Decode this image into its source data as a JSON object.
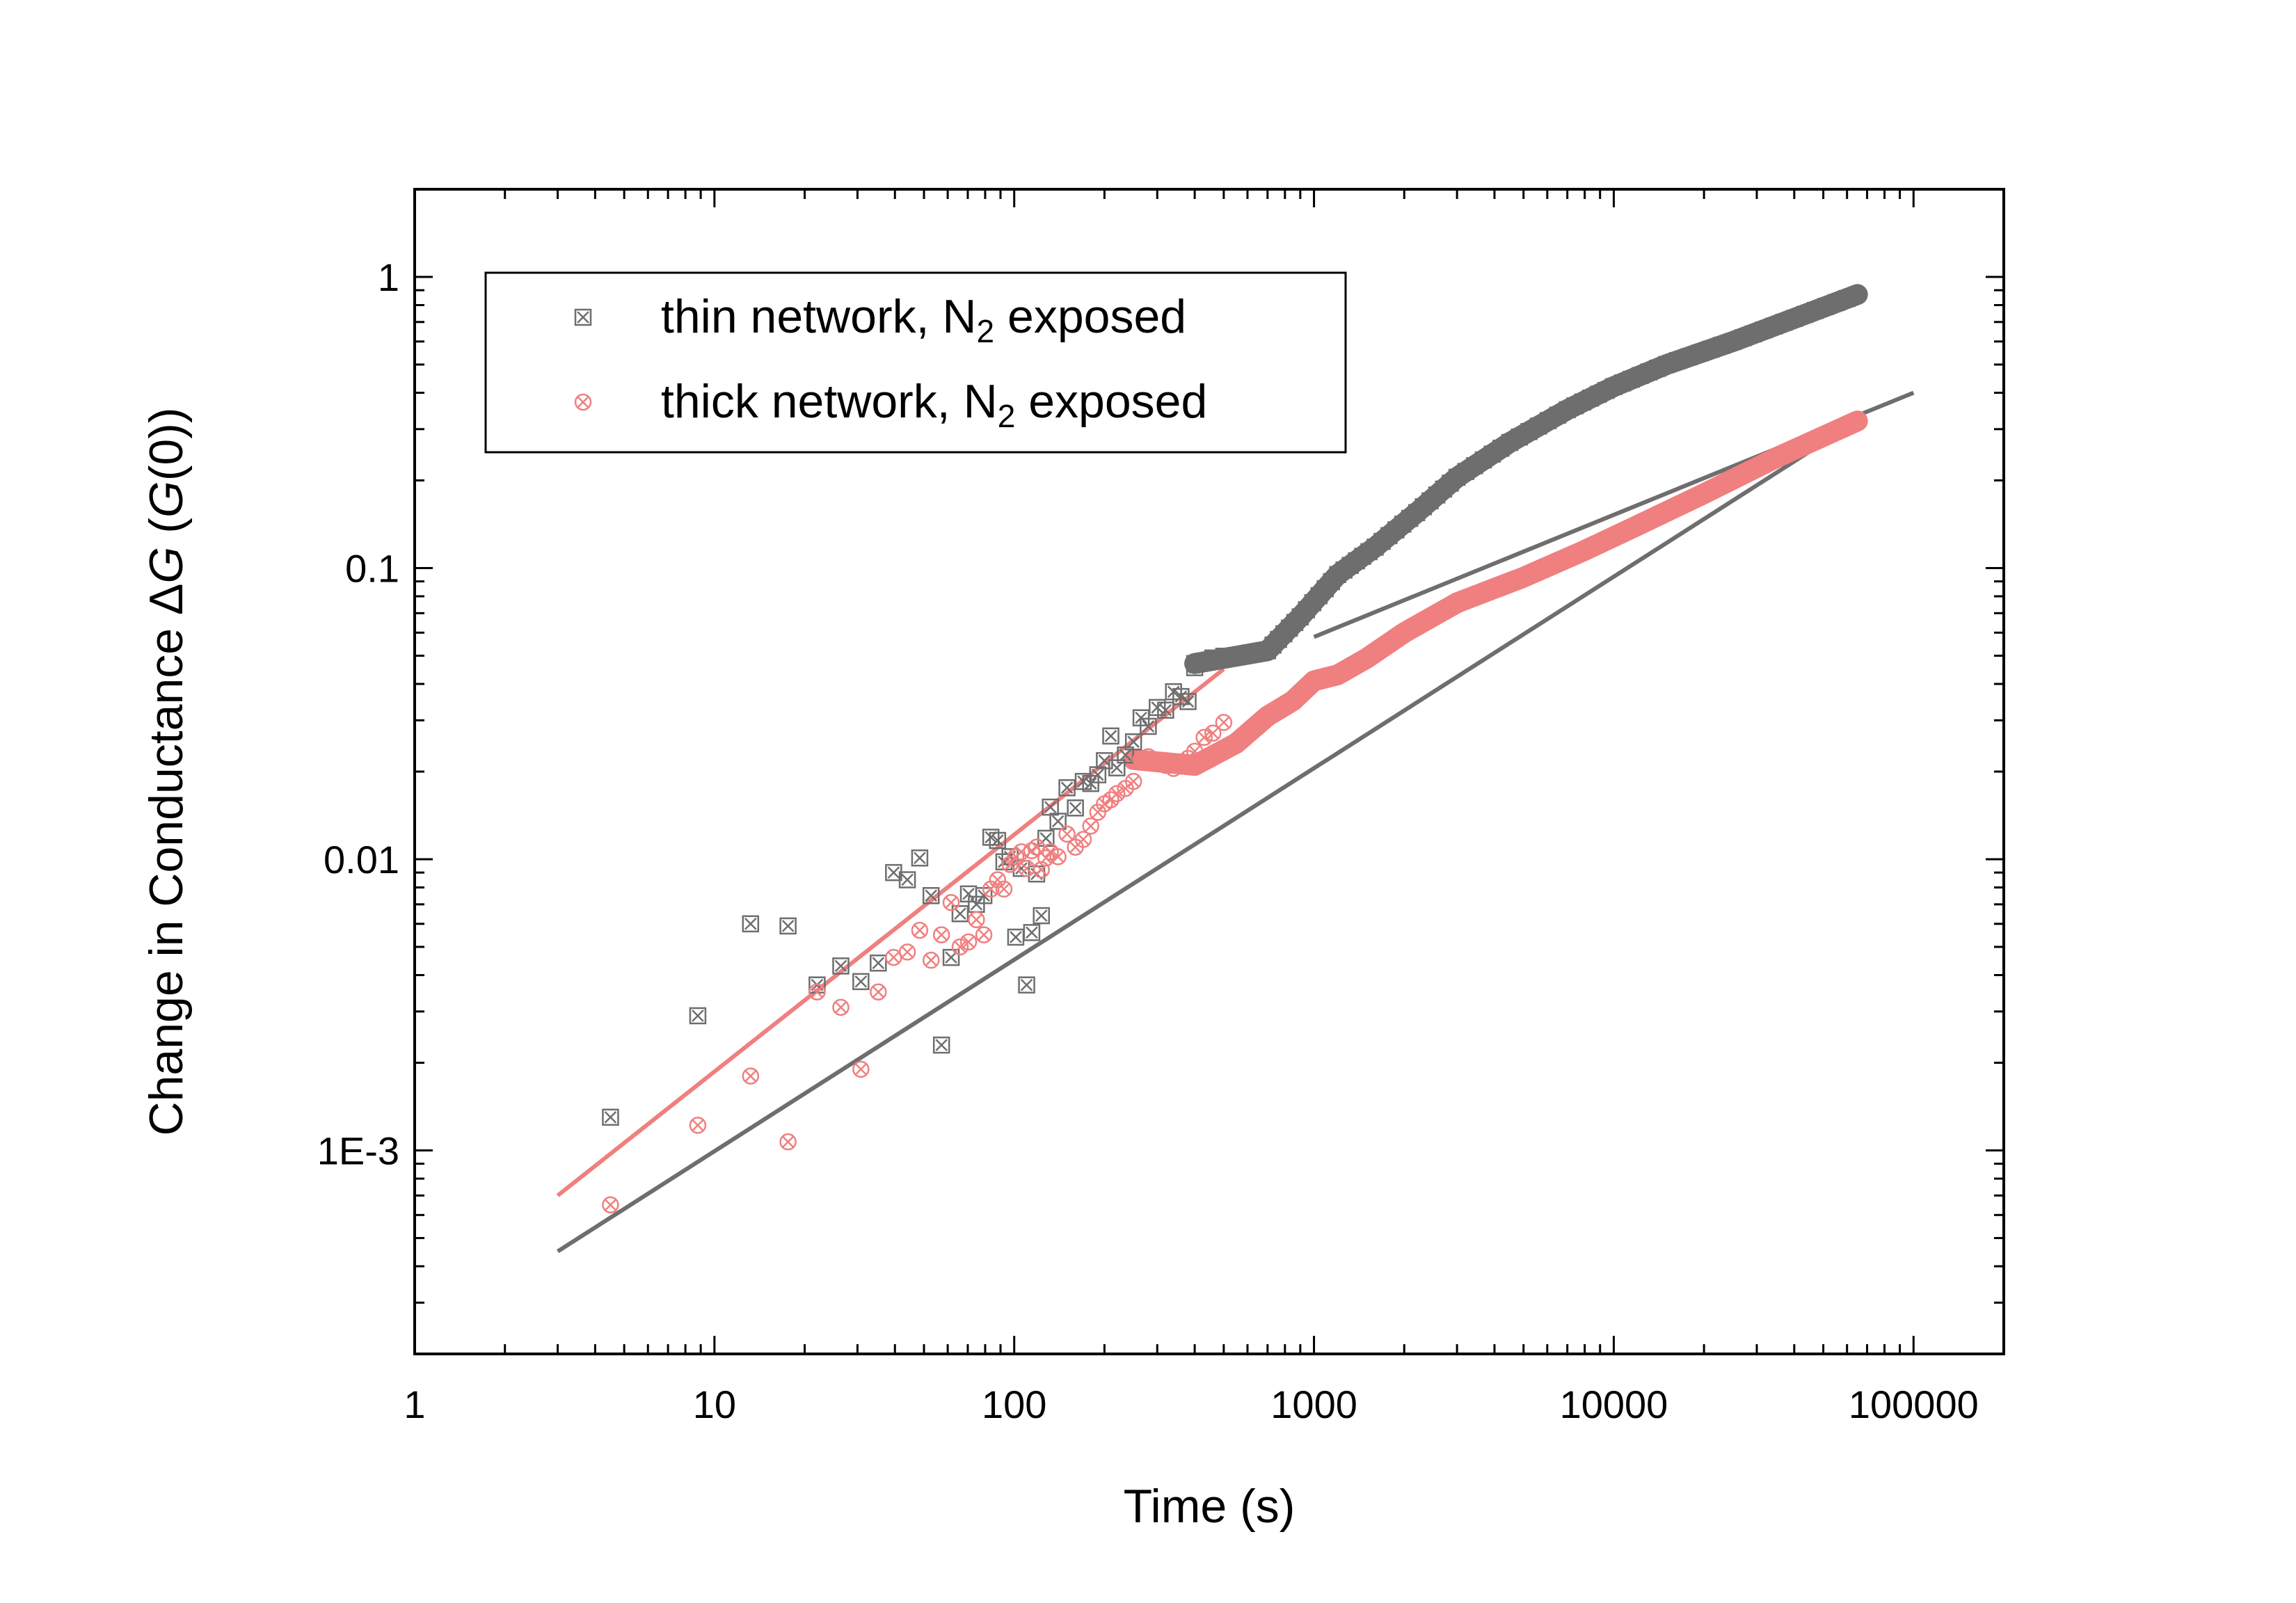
{
  "chart_data": {
    "type": "scatter",
    "xscale": "log",
    "yscale": "log",
    "xlim": [
      1,
      200000
    ],
    "ylim": [
      0.0002,
      2
    ],
    "xlabel": "Time (s)",
    "ylabel_parts": {
      "prefix": "Change in Conductance ",
      "delta": "Δ",
      "var": "G",
      "paren_open": " (",
      "var2": "G",
      "paren_close": "(0))"
    },
    "xticks": [
      1,
      10,
      100,
      1000,
      10000,
      100000
    ],
    "xtick_labels": [
      "1",
      "10",
      "100",
      "1000",
      "10000",
      "100000"
    ],
    "yticks": [
      0.001,
      0.01,
      0.1,
      1
    ],
    "ytick_labels": [
      "1E-3",
      "0.01",
      "0.1",
      "1"
    ],
    "legend": {
      "position": "top-left",
      "entries": [
        {
          "text": "thin network, N",
          "sub": "2",
          "text_after": " exposed"
        },
        {
          "text": "thick network, N",
          "sub": "2",
          "text_after": " exposed"
        }
      ]
    },
    "series": [
      {
        "name": "thin network, N2 exposed",
        "color": "#6e6e6e",
        "marker": "square-x",
        "points": [
          [
            4.5,
            0.0013
          ],
          [
            8.8,
            0.0029
          ],
          [
            13.2,
            0.006
          ],
          [
            17.6,
            0.0059
          ],
          [
            22,
            0.0037
          ],
          [
            26.4,
            0.0043
          ],
          [
            30.8,
            0.0038
          ],
          [
            35.2,
            0.0044
          ],
          [
            39.6,
            0.009
          ],
          [
            44,
            0.0085
          ],
          [
            48.4,
            0.0101
          ],
          [
            52.8,
            0.0075
          ],
          [
            57.2,
            0.0023
          ],
          [
            61.6,
            0.0046
          ],
          [
            66,
            0.0065
          ],
          [
            70.4,
            0.0076
          ],
          [
            74.8,
            0.007
          ],
          [
            79.2,
            0.0075
          ],
          [
            83.6,
            0.0119
          ],
          [
            88,
            0.0116
          ],
          [
            92.4,
            0.0098
          ],
          [
            96.8,
            0.0102
          ],
          [
            101.2,
            0.0054
          ],
          [
            105.6,
            0.0093
          ],
          [
            110,
            0.0037
          ],
          [
            114.4,
            0.0056
          ],
          [
            118.8,
            0.0089
          ],
          [
            123.2,
            0.0064
          ],
          [
            127.6,
            0.0118
          ],
          [
            132,
            0.0151
          ],
          [
            140,
            0.0135
          ],
          [
            150,
            0.0176
          ],
          [
            160,
            0.015
          ],
          [
            170,
            0.0185
          ],
          [
            180,
            0.0182
          ],
          [
            190,
            0.0195
          ],
          [
            200,
            0.0218
          ],
          [
            210,
            0.0265
          ],
          [
            220,
            0.0206
          ],
          [
            235,
            0.0228
          ],
          [
            250,
            0.0253
          ],
          [
            265,
            0.0306
          ],
          [
            280,
            0.0286
          ],
          [
            300,
            0.0332
          ],
          [
            320,
            0.0325
          ],
          [
            340,
            0.0376
          ],
          [
            360,
            0.0362
          ],
          [
            380,
            0.0348
          ],
          [
            400,
            0.0455
          ],
          [
            430,
            0.0477
          ],
          [
            460,
            0.0491
          ],
          [
            500,
            0.0498
          ]
        ],
        "curve": [
          [
            400,
            0.047
          ],
          [
            700,
            0.052
          ],
          [
            900,
            0.068
          ],
          [
            1200,
            0.095
          ],
          [
            1600,
            0.118
          ],
          [
            2200,
            0.155
          ],
          [
            3000,
            0.205
          ],
          [
            4500,
            0.27
          ],
          [
            7000,
            0.35
          ],
          [
            10000,
            0.42
          ],
          [
            15000,
            0.5
          ],
          [
            25000,
            0.6
          ],
          [
            40000,
            0.72
          ],
          [
            65000,
            0.87
          ]
        ],
        "fit": {
          "x": [
            3,
            65000
          ],
          "y": [
            0.00045,
            0.32
          ]
        }
      },
      {
        "name": "thick network, N2 exposed",
        "color": "#f07f7f",
        "marker": "circle-x",
        "points": [
          [
            4.5,
            0.00065
          ],
          [
            8.8,
            0.00122
          ],
          [
            13.2,
            0.0018
          ],
          [
            17.6,
            0.00107
          ],
          [
            22,
            0.0035
          ],
          [
            26.4,
            0.0031
          ],
          [
            30.8,
            0.0019
          ],
          [
            35.2,
            0.0035
          ],
          [
            39.6,
            0.0046
          ],
          [
            44,
            0.0048
          ],
          [
            48.4,
            0.0057
          ],
          [
            52.8,
            0.0045
          ],
          [
            57.2,
            0.0055
          ],
          [
            61.6,
            0.0071
          ],
          [
            66,
            0.005
          ],
          [
            70.4,
            0.0052
          ],
          [
            74.8,
            0.0062
          ],
          [
            79.2,
            0.0055
          ],
          [
            83.6,
            0.0079
          ],
          [
            88,
            0.0085
          ],
          [
            92.4,
            0.0079
          ],
          [
            96.8,
            0.0096
          ],
          [
            101.2,
            0.0102
          ],
          [
            105.6,
            0.0106
          ],
          [
            110,
            0.0093
          ],
          [
            114.4,
            0.0107
          ],
          [
            118.8,
            0.011
          ],
          [
            123.2,
            0.0092
          ],
          [
            127.6,
            0.0101
          ],
          [
            132,
            0.0106
          ],
          [
            140,
            0.0102
          ],
          [
            150,
            0.0122
          ],
          [
            160,
            0.011
          ],
          [
            170,
            0.0117
          ],
          [
            180,
            0.013
          ],
          [
            190,
            0.0145
          ],
          [
            200,
            0.0155
          ],
          [
            210,
            0.016
          ],
          [
            220,
            0.0168
          ],
          [
            235,
            0.0175
          ],
          [
            250,
            0.0185
          ],
          [
            265,
            0.022
          ],
          [
            280,
            0.0225
          ],
          [
            300,
            0.0215
          ],
          [
            320,
            0.021
          ],
          [
            340,
            0.0205
          ],
          [
            360,
            0.0212
          ],
          [
            380,
            0.0222
          ],
          [
            400,
            0.0235
          ],
          [
            430,
            0.0262
          ],
          [
            460,
            0.0271
          ],
          [
            500,
            0.0295
          ]
        ],
        "curve": [
          [
            250,
            0.022
          ],
          [
            400,
            0.021
          ],
          [
            550,
            0.025
          ],
          [
            700,
            0.031
          ],
          [
            850,
            0.035
          ],
          [
            1000,
            0.041
          ],
          [
            1200,
            0.043
          ],
          [
            1500,
            0.049
          ],
          [
            2000,
            0.06
          ],
          [
            3000,
            0.076
          ],
          [
            5000,
            0.093
          ],
          [
            8000,
            0.115
          ],
          [
            12000,
            0.14
          ],
          [
            20000,
            0.18
          ],
          [
            35000,
            0.24
          ],
          [
            65000,
            0.32
          ]
        ],
        "fit": {
          "x": [
            3,
            500
          ],
          "y": [
            0.0007,
            0.045
          ]
        }
      }
    ],
    "extra_fit": {
      "color": "#6e6e6e",
      "x": [
        1000,
        100000
      ],
      "y": [
        0.058,
        0.4
      ]
    }
  }
}
